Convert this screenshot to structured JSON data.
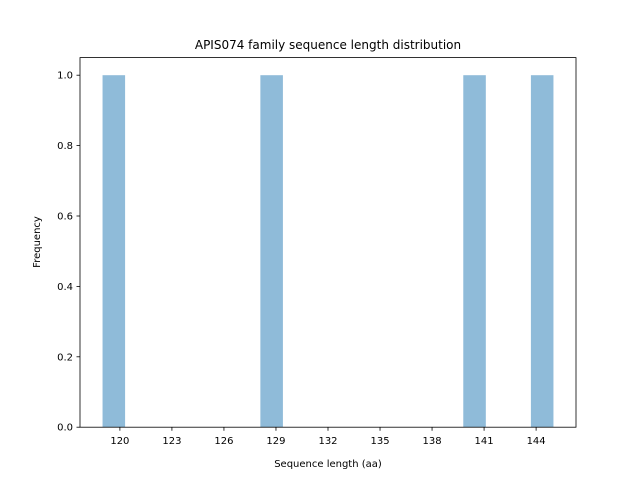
{
  "chart_data": {
    "type": "histogram",
    "title": "APIS074 family sequence length distribution",
    "x_label": "Sequence length (aa)",
    "y_label": "Frequency",
    "bins": [
      119,
      120.3,
      121.6,
      122.9,
      124.2,
      125.5,
      126.8,
      128.1,
      129.4,
      130.7,
      132,
      133.3,
      134.6,
      135.9,
      137.2,
      138.5,
      139.8,
      141.1,
      142.4,
      143.7,
      145
    ],
    "values": [
      1,
      0,
      0,
      0,
      0,
      0,
      0,
      1,
      0,
      0,
      0,
      0,
      0,
      0,
      0,
      0,
      1,
      0,
      0,
      1
    ],
    "color": "#8fbbd9",
    "xlim": [
      117.7,
      146.3
    ],
    "xticks": [
      120,
      123,
      126,
      129,
      132,
      135,
      138,
      141,
      144
    ],
    "ylim": [
      0,
      1.05
    ],
    "yticks": [
      {
        "value": 0,
        "label": "0.0"
      },
      0.2,
      0.4,
      0.6,
      0.8,
      {
        "value": 1,
        "label": "1.0"
      }
    ],
    "grid": false
  }
}
